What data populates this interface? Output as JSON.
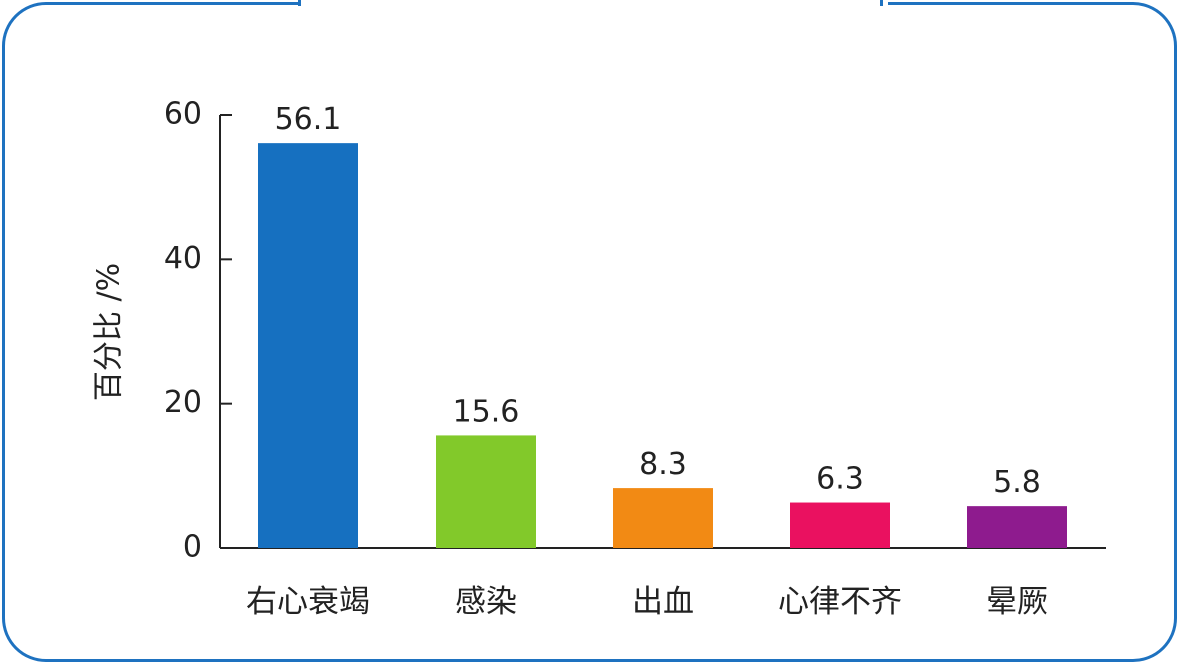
{
  "chart_data": {
    "type": "bar",
    "categories": [
      "右心衰竭",
      "感染",
      "出血",
      "心律不齐",
      "晕厥"
    ],
    "values": [
      56.1,
      15.6,
      8.3,
      6.3,
      5.8
    ],
    "value_labels": [
      "56.1",
      "15.6",
      "8.3",
      "6.3",
      "5.8"
    ],
    "colors": [
      "#1670c0",
      "#82c92a",
      "#f28a14",
      "#ea1160",
      "#8e1b8e"
    ],
    "title": "",
    "xlabel": "",
    "ylabel": "百分比 /%",
    "ylim": [
      0,
      60
    ],
    "yticks": [
      0,
      20,
      40,
      60
    ],
    "ytick_labels": [
      "0",
      "20",
      "40",
      "60"
    ],
    "grid": false,
    "legend": "none"
  },
  "colors": {
    "frame": "#1e72c0",
    "axis": "#222222"
  }
}
